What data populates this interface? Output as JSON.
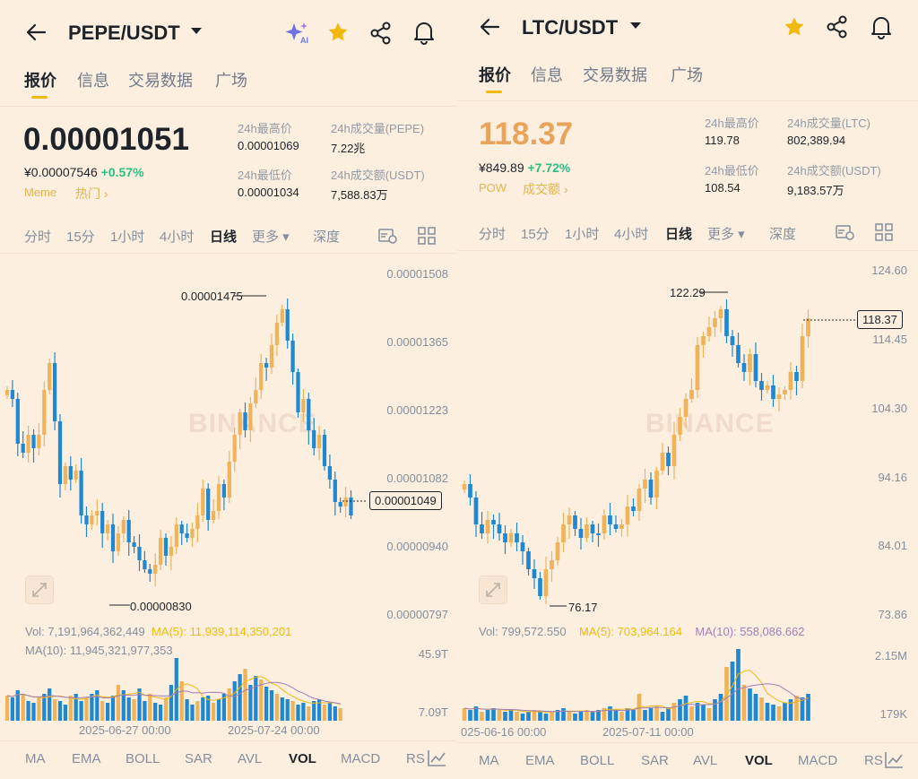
{
  "left": {
    "pair": "PEPE/USDT",
    "tabs": [
      "报价",
      "信息",
      "交易数据",
      "广场"
    ],
    "price": "0.00001051",
    "price_cny": "¥0.00007546",
    "change": "+0.57%",
    "tag1": "Meme",
    "tag2": "热门 ›",
    "stats": {
      "high_label": "24h最高价",
      "high": "0.00001069",
      "vol_label": "24h成交量(PEPE)",
      "vol": "7.22兆",
      "low_label": "24h最低价",
      "low": "0.00001034",
      "amt_label": "24h成交额(USDT)",
      "amt": "7,588.83万"
    },
    "intervals": [
      "分时",
      "15分",
      "1小时",
      "4小时",
      "日线",
      "更多 ▾",
      "深度"
    ],
    "active_interval": "日线",
    "y_axis": [
      "0.00001508",
      "0.00001365",
      "0.00001223",
      "0.00001082",
      "0.00000940",
      "0.00000797"
    ],
    "last_price_tag": "0.00001049",
    "high_annotation": "0.00001475",
    "low_annotation": "0.00000830",
    "watermark": "BINANCE",
    "vol_line": "Vol: 7,191,964,362,449",
    "ma5_line": "MA(5): 11,939,114,350,201",
    "ma10_line": "MA(10): 11,945,321,977,353",
    "vol_axis_top": "45.9T",
    "vol_axis_bottom": "7.09T",
    "date1": "2025-06-27 00:00",
    "date2": "2025-07-24 00:00",
    "indicators": [
      "MA",
      "EMA",
      "BOLL",
      "SAR",
      "AVL",
      "VOL",
      "MACD",
      "RS"
    ],
    "active_indicator": "VOL"
  },
  "right": {
    "pair": "LTC/USDT",
    "tabs": [
      "报价",
      "信息",
      "交易数据",
      "广场"
    ],
    "price": "118.37",
    "price_cny": "¥849.89",
    "change": "+7.72%",
    "tag1": "POW",
    "tag2": "成交额 ›",
    "stats": {
      "high_label": "24h最高价",
      "high": "119.78",
      "vol_label": "24h成交量(LTC)",
      "vol": "802,389.94",
      "low_label": "24h最低价",
      "low": "108.54",
      "amt_label": "24h成交额(USDT)",
      "amt": "9,183.57万"
    },
    "intervals": [
      "分时",
      "15分",
      "1小时",
      "4小时",
      "日线",
      "更多 ▾",
      "深度"
    ],
    "active_interval": "日线",
    "y_axis": [
      "124.60",
      "114.45",
      "104.30",
      "94.16",
      "84.01",
      "73.86"
    ],
    "last_price_tag": "118.37",
    "high_annotation": "122.29",
    "low_annotation": "76.17",
    "watermark": "BINANCE",
    "vol_line": "Vol: 799,572.550",
    "ma5_line": "MA(5): 703,964.164",
    "ma10_line": "MA(10): 558,086.662",
    "vol_axis_top": "2.15M",
    "vol_axis_bottom": "179K",
    "date1": "025-06-16 00:00",
    "date2": "2025-07-11 00:00",
    "indicators": [
      "MA",
      "EMA",
      "BOLL",
      "SAR",
      "AVL",
      "VOL",
      "MACD",
      "RS"
    ],
    "active_indicator": "VOL"
  },
  "icons": [
    "back-arrow-icon",
    "ai-sparkle-icon",
    "star-icon",
    "share-icon",
    "bell-icon",
    "chart-settings-icon",
    "grid-icon",
    "fullscreen-icon",
    "chart-line-icon"
  ],
  "colors": {
    "up": "#f0b35a",
    "down": "#1e88d2",
    "accent": "#f0b90b",
    "green": "#2ebd85"
  }
}
